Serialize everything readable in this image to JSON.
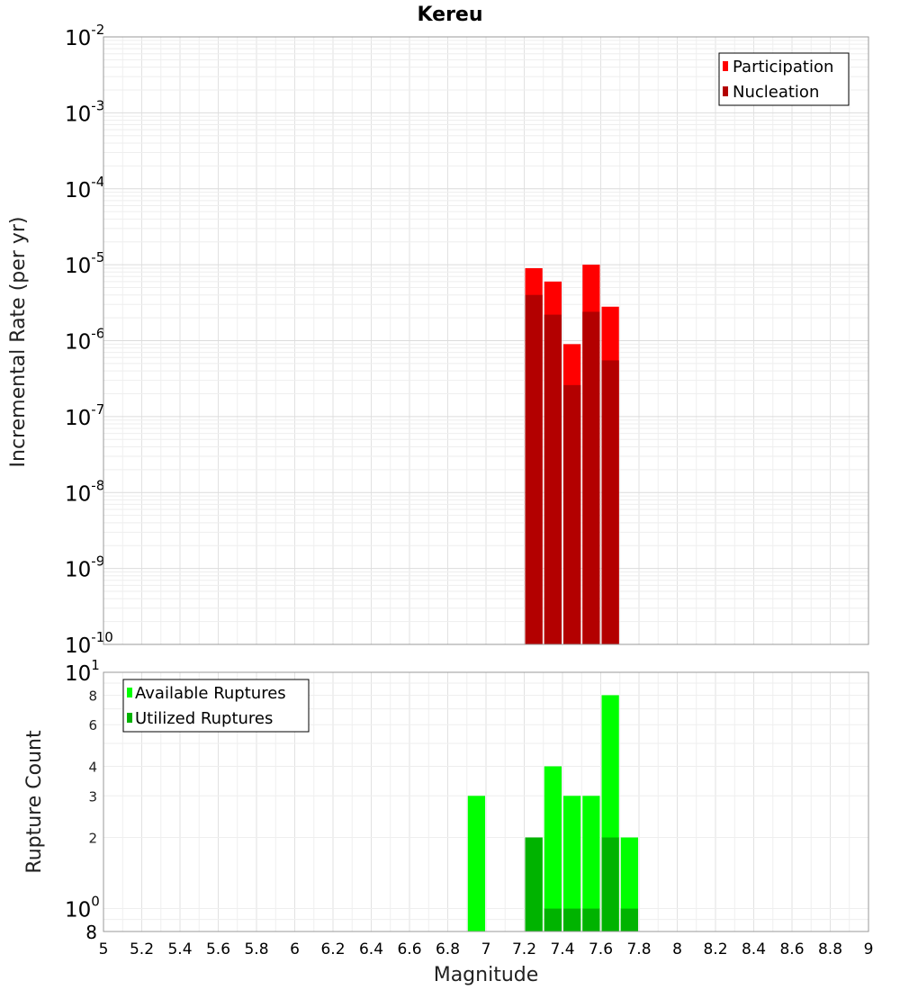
{
  "chart_data": [
    {
      "type": "bar",
      "title": "Kereu",
      "ylabel": "Incremental Rate (per yr)",
      "xlabel": "",
      "xlim": [
        5,
        9
      ],
      "ylim": [
        1e-10,
        0.01
      ],
      "yscale": "log",
      "bin_width": 0.1,
      "x": [
        7.25,
        7.35,
        7.45,
        7.55,
        7.65
      ],
      "series": [
        {
          "name": "Participation",
          "color": "#ff0000",
          "values": [
            9e-06,
            6e-06,
            9e-07,
            1e-05,
            2.8e-06
          ]
        },
        {
          "name": "Nucleation",
          "color": "#b30000",
          "values": [
            4e-06,
            2.2e-06,
            2.6e-07,
            2.4e-06,
            5.5e-07
          ]
        }
      ],
      "y_ticks": [
        {
          "base": "10",
          "exp": "-10",
          "value": 1e-10
        },
        {
          "base": "10",
          "exp": "-9",
          "value": 1e-09
        },
        {
          "base": "10",
          "exp": "-8",
          "value": 1e-08
        },
        {
          "base": "10",
          "exp": "-7",
          "value": 1e-07
        },
        {
          "base": "10",
          "exp": "-6",
          "value": 1e-06
        },
        {
          "base": "10",
          "exp": "-5",
          "value": 1e-05
        },
        {
          "base": "10",
          "exp": "-4",
          "value": 0.0001
        },
        {
          "base": "10",
          "exp": "-3",
          "value": 0.001
        },
        {
          "base": "10",
          "exp": "-2",
          "value": 0.01
        }
      ],
      "grid": true,
      "legend": "top-right"
    },
    {
      "type": "bar",
      "title": "",
      "ylabel": "Rupture Count",
      "xlabel": "Magnitude",
      "xlim": [
        5,
        9
      ],
      "ylim": [
        0.8,
        10
      ],
      "yscale": "log",
      "bin_width": 0.1,
      "x": [
        6.95,
        7.25,
        7.35,
        7.45,
        7.55,
        7.65,
        7.75
      ],
      "series": [
        {
          "name": "Available Ruptures",
          "color": "#00ff00",
          "values": [
            3,
            2,
            4,
            3,
            3,
            8,
            2
          ]
        },
        {
          "name": "Utilized Ruptures",
          "color": "#00b300",
          "values": [
            0,
            2,
            1,
            1,
            1,
            2,
            1
          ]
        }
      ],
      "y_major_ticks": [
        {
          "base": "10",
          "exp": "0",
          "value": 1
        },
        {
          "base": "10",
          "exp": "1",
          "value": 10
        }
      ],
      "y_minor_ticks": [
        {
          "label": "8",
          "value": 0.8
        },
        {
          "label": "2",
          "value": 2
        },
        {
          "label": "3",
          "value": 3
        },
        {
          "label": "4",
          "value": 4
        },
        {
          "label": "6",
          "value": 6
        },
        {
          "label": "8",
          "value": 8
        }
      ],
      "x_tick_labels": [
        "5",
        "5.2",
        "5.4",
        "5.6",
        "5.8",
        "6",
        "6.2",
        "6.4",
        "6.6",
        "6.8",
        "7",
        "7.2",
        "7.4",
        "7.6",
        "7.8",
        "8",
        "8.2",
        "8.4",
        "8.6",
        "8.8",
        "9"
      ],
      "grid": true,
      "legend": "top-left"
    }
  ]
}
